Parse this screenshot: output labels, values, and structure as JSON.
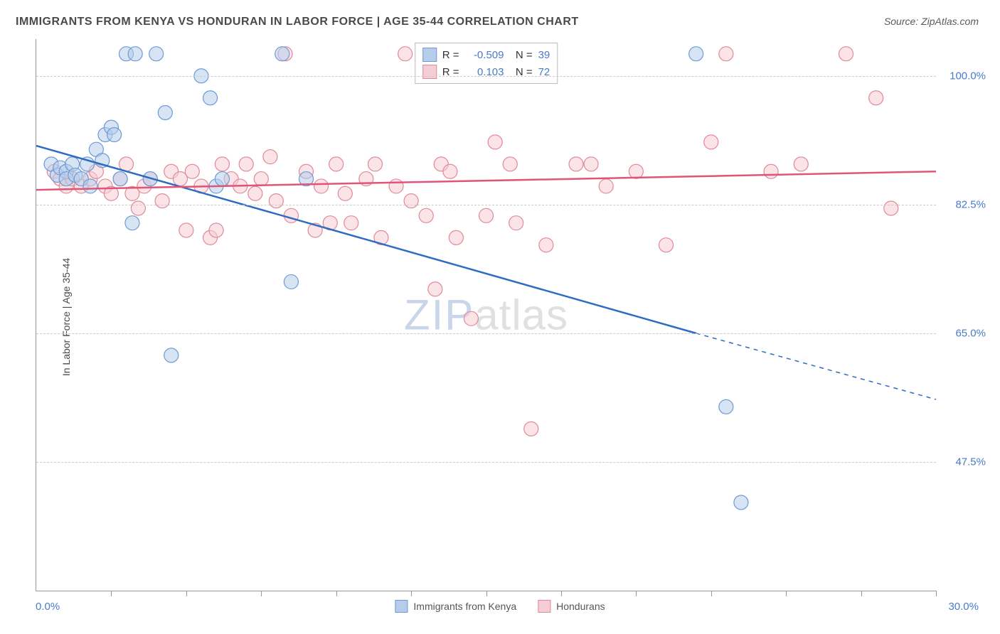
{
  "title": "IMMIGRANTS FROM KENYA VS HONDURAN IN LABOR FORCE | AGE 35-44 CORRELATION CHART",
  "source": "Source: ZipAtlas.com",
  "y_label": "In Labor Force | Age 35-44",
  "watermark": {
    "part1": "ZIP",
    "part2": "atlas"
  },
  "chart": {
    "type": "scatter",
    "x_range": [
      0.0,
      30.0
    ],
    "y_range": [
      30.0,
      105.0
    ],
    "x_start_label": "0.0%",
    "x_end_label": "30.0%",
    "x_ticks_count": 12,
    "y_ticks": [
      {
        "value": 47.5,
        "label": "47.5%"
      },
      {
        "value": 65.0,
        "label": "65.0%"
      },
      {
        "value": 82.5,
        "label": "82.5%"
      },
      {
        "value": 100.0,
        "label": "100.0%"
      }
    ],
    "grid_color": "#cccccc",
    "background_color": "#ffffff",
    "marker_radius": 10,
    "marker_stroke_width": 1.2,
    "line_width": 2.5,
    "series": [
      {
        "id": "kenya",
        "label": "Immigrants from Kenya",
        "fill": "#b5cdeb",
        "stroke": "#6d9ad4",
        "line_color": "#2d6cc0",
        "r_value": "-0.509",
        "n_value": "39",
        "trend": {
          "x1": 0.0,
          "y1": 90.5,
          "x2": 22.0,
          "y2": 65.0,
          "extend_x2": 30.0,
          "extend_y2": 56.0
        },
        "points": [
          [
            0.5,
            88
          ],
          [
            0.7,
            86.5
          ],
          [
            0.8,
            87.5
          ],
          [
            1.0,
            87
          ],
          [
            1.0,
            86
          ],
          [
            1.2,
            88
          ],
          [
            1.3,
            86.5
          ],
          [
            1.5,
            86
          ],
          [
            1.7,
            88
          ],
          [
            1.8,
            85
          ],
          [
            2.0,
            90
          ],
          [
            2.2,
            88.5
          ],
          [
            2.3,
            92
          ],
          [
            2.5,
            93
          ],
          [
            2.6,
            92
          ],
          [
            2.8,
            86
          ],
          [
            3.0,
            103
          ],
          [
            3.3,
            103
          ],
          [
            3.2,
            80
          ],
          [
            3.8,
            86
          ],
          [
            4.0,
            103
          ],
          [
            4.3,
            95
          ],
          [
            4.5,
            62
          ],
          [
            5.5,
            100
          ],
          [
            5.8,
            97
          ],
          [
            6.0,
            85
          ],
          [
            6.2,
            86
          ],
          [
            8.2,
            103
          ],
          [
            8.5,
            72
          ],
          [
            9.0,
            86
          ],
          [
            22.0,
            103
          ],
          [
            23.0,
            55
          ],
          [
            23.5,
            42
          ]
        ]
      },
      {
        "id": "honduras",
        "label": "Hondurans",
        "fill": "#f6cdd6",
        "stroke": "#e08999",
        "line_color": "#e05577",
        "r_value": "0.103",
        "n_value": "72",
        "trend": {
          "x1": 0.0,
          "y1": 84.5,
          "x2": 30.0,
          "y2": 87.0
        },
        "points": [
          [
            0.6,
            87
          ],
          [
            0.8,
            86
          ],
          [
            1.0,
            85
          ],
          [
            1.2,
            86
          ],
          [
            1.5,
            85
          ],
          [
            1.8,
            86
          ],
          [
            2.0,
            87
          ],
          [
            2.3,
            85
          ],
          [
            2.5,
            84
          ],
          [
            2.8,
            86
          ],
          [
            3.0,
            88
          ],
          [
            3.2,
            84
          ],
          [
            3.4,
            82
          ],
          [
            3.6,
            85
          ],
          [
            3.8,
            86
          ],
          [
            4.2,
            83
          ],
          [
            4.5,
            87
          ],
          [
            4.8,
            86
          ],
          [
            5.0,
            79
          ],
          [
            5.2,
            87
          ],
          [
            5.5,
            85
          ],
          [
            5.8,
            78
          ],
          [
            6.0,
            79
          ],
          [
            6.2,
            88
          ],
          [
            6.5,
            86
          ],
          [
            6.8,
            85
          ],
          [
            7.0,
            88
          ],
          [
            7.3,
            84
          ],
          [
            7.5,
            86
          ],
          [
            7.8,
            89
          ],
          [
            8.0,
            83
          ],
          [
            8.3,
            103
          ],
          [
            8.5,
            81
          ],
          [
            9.0,
            87
          ],
          [
            9.3,
            79
          ],
          [
            9.5,
            85
          ],
          [
            9.8,
            80
          ],
          [
            10.0,
            88
          ],
          [
            10.3,
            84
          ],
          [
            10.5,
            80
          ],
          [
            11.0,
            86
          ],
          [
            11.3,
            88
          ],
          [
            11.5,
            78
          ],
          [
            12.0,
            85
          ],
          [
            12.3,
            103
          ],
          [
            12.5,
            83
          ],
          [
            13.0,
            81
          ],
          [
            13.3,
            71
          ],
          [
            13.5,
            88
          ],
          [
            13.8,
            87
          ],
          [
            14.0,
            78
          ],
          [
            14.5,
            67
          ],
          [
            15.0,
            81
          ],
          [
            15.3,
            91
          ],
          [
            15.8,
            88
          ],
          [
            16.0,
            80
          ],
          [
            16.5,
            52
          ],
          [
            17.0,
            77
          ],
          [
            18.0,
            88
          ],
          [
            18.5,
            88
          ],
          [
            19.0,
            85
          ],
          [
            20.0,
            87
          ],
          [
            21.0,
            77
          ],
          [
            22.5,
            91
          ],
          [
            23.0,
            103
          ],
          [
            24.5,
            87
          ],
          [
            25.5,
            88
          ],
          [
            27.0,
            103
          ],
          [
            28.0,
            97
          ],
          [
            28.5,
            82
          ]
        ]
      }
    ],
    "bottom_legend": [
      {
        "label": "Immigrants from Kenya",
        "fill": "#b5cdeb",
        "stroke": "#6d9ad4"
      },
      {
        "label": "Hondurans",
        "fill": "#f6cdd6",
        "stroke": "#e08999"
      }
    ]
  }
}
